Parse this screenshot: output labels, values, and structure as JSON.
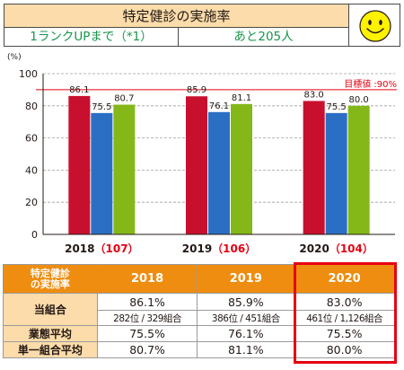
{
  "header": {
    "title": "特定健診の実施率",
    "rank_text": "1ランクUPまで（*1）",
    "remaining_text": "あと205人",
    "face_icon": "smiley-face-icon"
  },
  "colors": {
    "series1": "#c8102e",
    "series2": "#2b6fc4",
    "series3": "#84b818",
    "target": "#e60012",
    "header_orange": "#ee8d10",
    "header_light": "#fbdcaa"
  },
  "chart_data": {
    "type": "bar",
    "categories": [
      "2018",
      "2019",
      "2020"
    ],
    "category_counts": [
      "（107）",
      "（106）",
      "（104）"
    ],
    "series": [
      {
        "values": [
          86.1,
          85.9,
          83.0
        ],
        "labels": [
          "86.1",
          "85.9",
          "83.0"
        ]
      },
      {
        "values": [
          75.5,
          76.1,
          75.5
        ],
        "labels": [
          "75.5",
          "76.1",
          "75.5"
        ]
      },
      {
        "values": [
          80.7,
          81.1,
          80.0
        ],
        "labels": [
          "80.7",
          "81.1",
          "80.0"
        ]
      }
    ],
    "ylabel": "(%)",
    "ylim": [
      0,
      100
    ],
    "yticks": [
      "0",
      "20",
      "40",
      "60",
      "80",
      "100"
    ],
    "grid": true,
    "target_value": 90,
    "target_label": "目標値 :90%"
  },
  "table": {
    "corner_line1": "特定健診",
    "corner_line2": "の実施率",
    "years": [
      "2018",
      "2019",
      "2020"
    ],
    "union_label": "当組合",
    "union_rates": [
      "86.1%",
      "85.9%",
      "83.0%"
    ],
    "union_ranks": [
      "282位 / 329組合",
      "386位 / 451組合",
      "461位 / 1,126組合"
    ],
    "industry_label": "業態平均",
    "industry_rates": [
      "75.5%",
      "76.1%",
      "75.5%"
    ],
    "single_label": "単一組合平均",
    "single_rates": [
      "80.7%",
      "81.1%",
      "80.0%"
    ]
  }
}
